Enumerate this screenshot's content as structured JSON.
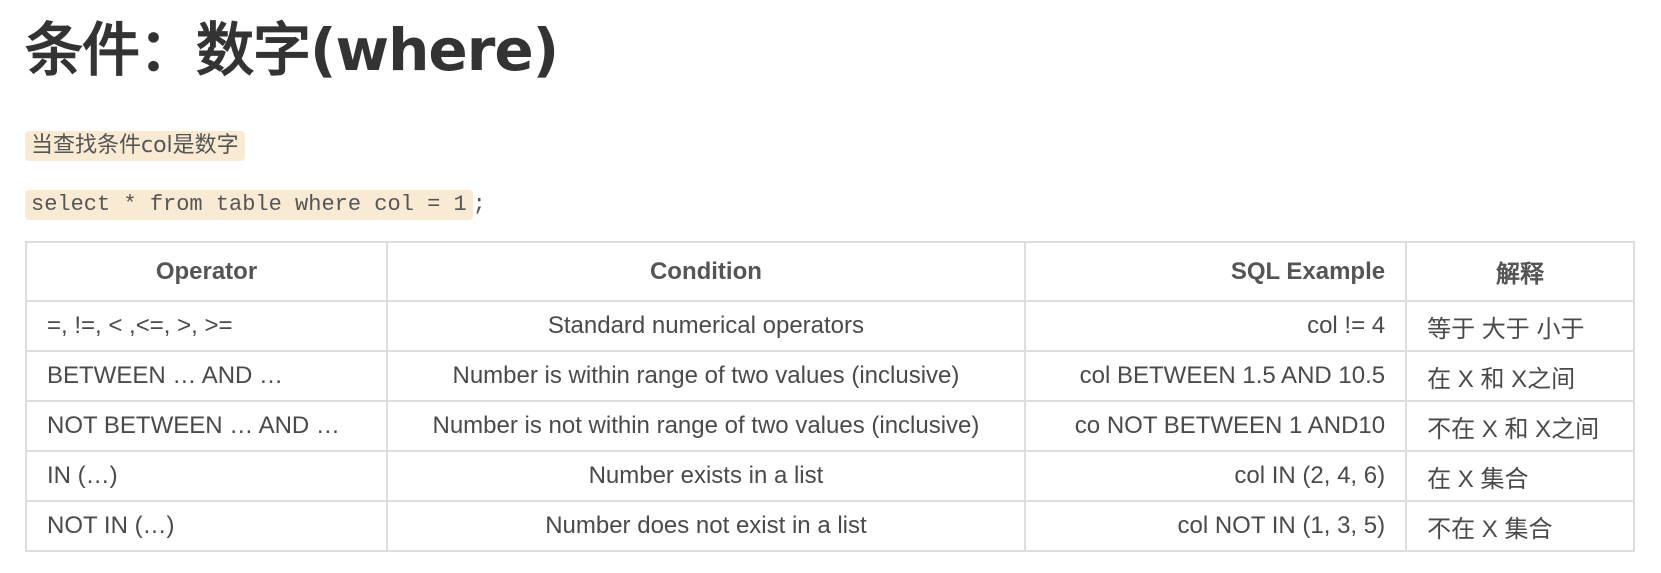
{
  "title": "条件：数字(where)",
  "description": "当查找条件col是数字",
  "example_sql": "select * from table where col = 1",
  "example_suffix": ";",
  "table": {
    "headers": [
      "Operator",
      "Condition",
      "SQL Example",
      "解释"
    ],
    "rows": [
      [
        "=, !=, < ,<=, >, >=",
        "Standard numerical operators",
        "col != 4",
        "等于 大于 小于"
      ],
      [
        "BETWEEN … AND …",
        "Number is within range of two values (inclusive)",
        "col BETWEEN 1.5 AND 10.5",
        "在 X 和 X之间"
      ],
      [
        "NOT BETWEEN … AND …",
        "Number is not within range of two values (inclusive)",
        "co NOT BETWEEN 1 AND10",
        "不在 X 和 X之间"
      ],
      [
        "IN (…)",
        "Number exists in a list",
        "col IN (2, 4, 6)",
        "在 X 集合"
      ],
      [
        "NOT IN (…)",
        "Number does not exist in a list",
        "col NOT IN (1, 3, 5)",
        "不在 X 集合"
      ]
    ]
  },
  "colors": {
    "code_bg": "#f9ead3",
    "text": "#333333",
    "border": "#dddddd"
  }
}
